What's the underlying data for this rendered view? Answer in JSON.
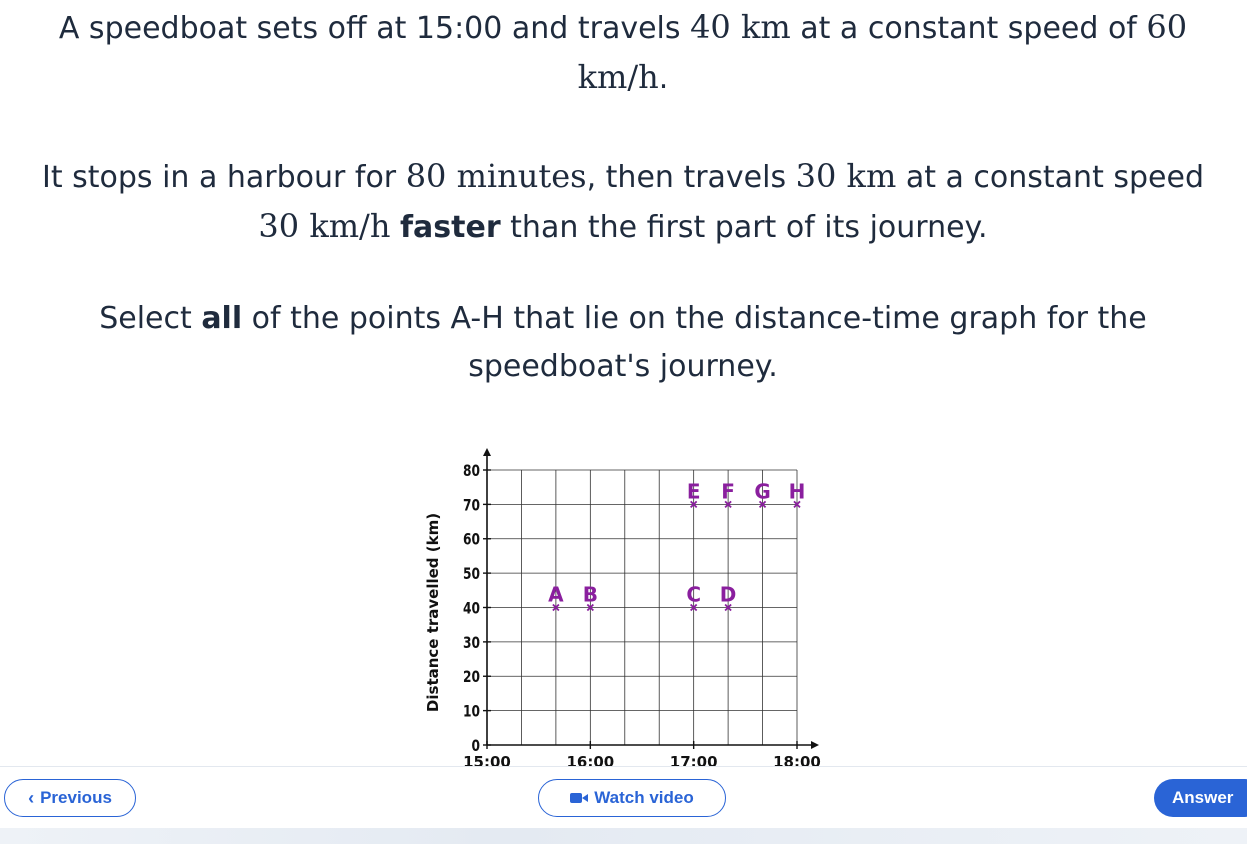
{
  "question": {
    "p1_a": "A speedboat sets off at 15:00 and travels ",
    "p1_m1": "40 km",
    "p1_b": " at a constant speed of ",
    "p1_m2": "60 km/h",
    "p1_c": ".",
    "p2_a": "It stops in a harbour for ",
    "p2_m1": "80 minutes",
    "p2_b": ", then travels ",
    "p2_m2": "30 km",
    "p2_c": " at a constant speed ",
    "p2_m3": "30 km/h",
    "p2_bold": "faster",
    "p2_d": " than the first part of its journey.",
    "p3_a": "Select ",
    "p3_bold": "all",
    "p3_b": " of the points A-H that lie on the distance-time graph for the speedboat's journey."
  },
  "chart_data": {
    "type": "scatter",
    "ylabel": "Distance travelled (km)",
    "x_ticks": [
      "15:00",
      "16:00",
      "17:00",
      "18:00"
    ],
    "x_tick_minutes": [
      0,
      60,
      120,
      180
    ],
    "y_ticks": [
      0,
      10,
      20,
      30,
      40,
      50,
      60,
      70,
      80
    ],
    "xlim_minutes": [
      0,
      180
    ],
    "ylim": [
      0,
      80
    ],
    "grid": true,
    "point_color": "#8a1f9e",
    "points": [
      {
        "label": "A",
        "x": "15:40",
        "y": 40
      },
      {
        "label": "B",
        "x": "16:00",
        "y": 40
      },
      {
        "label": "C",
        "x": "17:00",
        "y": 40
      },
      {
        "label": "D",
        "x": "17:20",
        "y": 40
      },
      {
        "label": "E",
        "x": "17:00",
        "y": 70
      },
      {
        "label": "F",
        "x": "17:20",
        "y": 70
      },
      {
        "label": "G",
        "x": "17:40",
        "y": 70
      },
      {
        "label": "H",
        "x": "18:00",
        "y": 70
      }
    ]
  },
  "footer": {
    "previous_label": "Previous",
    "video_label": "Watch video",
    "answer_label": "Answer",
    "accent_color": "#2a64d6"
  }
}
